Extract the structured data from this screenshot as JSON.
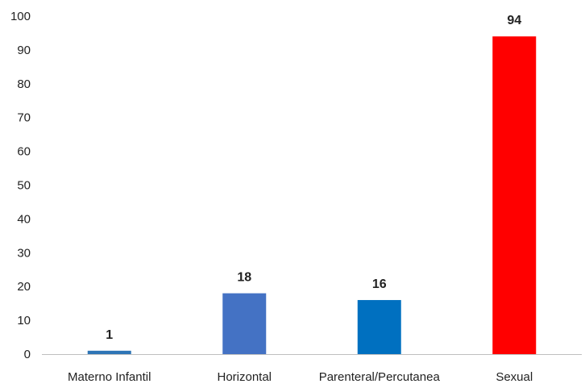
{
  "chart_data": {
    "type": "bar",
    "categories": [
      "Materno Infantil",
      "Horizontal",
      "Parenteral/Percutanea",
      "Sexual"
    ],
    "values": [
      1,
      18,
      16,
      94
    ],
    "data_labels": [
      "1",
      "18",
      "16",
      "94"
    ],
    "bar_colors": [
      "#2E75B6",
      "#4472C4",
      "#0070C0",
      "#FF0000"
    ],
    "ylim": [
      0,
      100
    ],
    "yticks": [
      "0",
      "10",
      "20",
      "30",
      "40",
      "50",
      "60",
      "70",
      "80",
      "90",
      "100"
    ],
    "grid": false,
    "legend": "none"
  }
}
